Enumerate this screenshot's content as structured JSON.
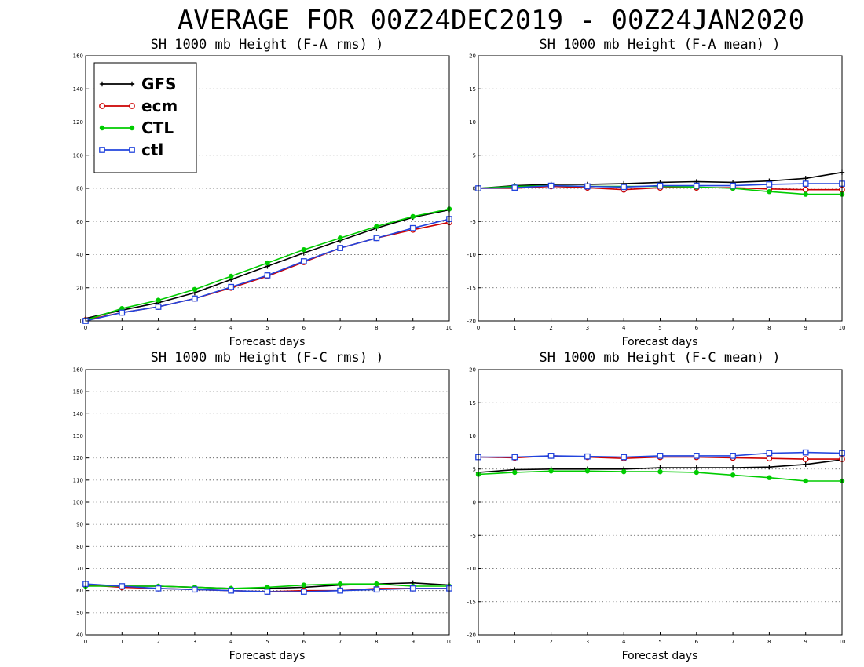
{
  "page_title": "AVERAGE FOR 00Z24DEC2019 - 00Z24JAN2020",
  "legend_entries": [
    "GFS",
    "ecm",
    "CTL",
    "ctl"
  ],
  "series_colors": {
    "GFS": "#000000",
    "ecm": "#cc0000",
    "CTL": "#00cc00",
    "ctl": "#2244dd"
  },
  "series_markers": {
    "GFS": "plus",
    "ecm": "circle",
    "CTL": "filled-circle",
    "ctl": "square"
  },
  "chart_data": [
    {
      "type": "line",
      "title": "SH 1000 mb Height (F-A rms) )",
      "xlabel": "Forecast days",
      "ylabel": "",
      "xlim": [
        0,
        10
      ],
      "ylim": [
        0,
        160
      ],
      "xticks": [
        0,
        1,
        2,
        3,
        4,
        5,
        6,
        7,
        8,
        9,
        10
      ],
      "yticks": [
        0,
        20,
        40,
        60,
        80,
        100,
        120,
        140,
        160
      ],
      "grid": "horizontal-dotted",
      "legend": "top-left",
      "x": [
        0,
        1,
        2,
        3,
        4,
        5,
        6,
        7,
        8,
        9,
        10
      ],
      "series": [
        {
          "name": "GFS",
          "values": [
            1.5,
            6.5,
            11,
            17,
            25,
            33,
            41,
            48.5,
            56,
            62.5,
            67
          ]
        },
        {
          "name": "ecm",
          "values": [
            0.5,
            5,
            8.5,
            13.5,
            20,
            27,
            35.5,
            44,
            50,
            55,
            59.5
          ]
        },
        {
          "name": "CTL",
          "values": [
            0.5,
            7.5,
            12.5,
            19,
            27,
            35,
            43,
            50,
            57,
            63,
            67.5
          ]
        },
        {
          "name": "ctl",
          "values": [
            0,
            5,
            8.5,
            13.5,
            20.5,
            27.5,
            36,
            44,
            50,
            56,
            61.5
          ]
        }
      ]
    },
    {
      "type": "line",
      "title": "SH 1000 mb Height (F-A mean) )",
      "xlabel": "Forecast days",
      "ylabel": "",
      "xlim": [
        0,
        10
      ],
      "ylim": [
        -20,
        20
      ],
      "xticks": [
        0,
        1,
        2,
        3,
        4,
        5,
        6,
        7,
        8,
        9,
        10
      ],
      "yticks": [
        -20,
        -15,
        -10,
        -5,
        0,
        5,
        10,
        15,
        20
      ],
      "grid": "horizontal-dotted",
      "x": [
        0,
        1,
        2,
        3,
        4,
        5,
        6,
        7,
        8,
        9,
        10
      ],
      "series": [
        {
          "name": "GFS",
          "values": [
            0,
            0.4,
            0.6,
            0.6,
            0.7,
            0.9,
            1.0,
            0.9,
            1.1,
            1.5,
            2.4
          ]
        },
        {
          "name": "ecm",
          "values": [
            0,
            0,
            0.3,
            0.1,
            -0.2,
            0.1,
            0.1,
            0.1,
            -0.1,
            -0.2,
            -0.2
          ]
        },
        {
          "name": "CTL",
          "values": [
            0,
            0.3,
            0.4,
            0.3,
            0.3,
            0.3,
            0.2,
            0,
            -0.5,
            -0.9,
            -0.9
          ]
        },
        {
          "name": "ctl",
          "values": [
            0,
            0.1,
            0.4,
            0.3,
            0.2,
            0.4,
            0.4,
            0.4,
            0.6,
            0.7,
            0.7
          ]
        }
      ]
    },
    {
      "type": "line",
      "title": "SH 1000 mb Height (F-C rms) )",
      "xlabel": "Forecast days",
      "ylabel": "",
      "xlim": [
        0,
        10
      ],
      "ylim": [
        40,
        160
      ],
      "xticks": [
        0,
        1,
        2,
        3,
        4,
        5,
        6,
        7,
        8,
        9,
        10
      ],
      "yticks": [
        40,
        50,
        60,
        70,
        80,
        90,
        100,
        110,
        120,
        130,
        140,
        150,
        160
      ],
      "grid": "horizontal-dotted",
      "x": [
        0,
        1,
        2,
        3,
        4,
        5,
        6,
        7,
        8,
        9,
        10
      ],
      "series": [
        {
          "name": "GFS",
          "values": [
            62.5,
            62,
            62,
            61.5,
            61,
            61,
            61.5,
            62.5,
            63,
            63.5,
            62.5
          ]
        },
        {
          "name": "ecm",
          "values": [
            62.5,
            61.5,
            61,
            60.5,
            60,
            59.5,
            60,
            60,
            61,
            61,
            61
          ]
        },
        {
          "name": "CTL",
          "values": [
            62,
            62,
            62,
            61.5,
            61,
            61.5,
            62.5,
            63,
            63,
            62,
            62
          ]
        },
        {
          "name": "ctl",
          "values": [
            63,
            62,
            61,
            60.5,
            60,
            59.5,
            59.5,
            60,
            60.5,
            61,
            61
          ]
        }
      ]
    },
    {
      "type": "line",
      "title": "SH 1000 mb Height (F-C mean) )",
      "xlabel": "Forecast days",
      "ylabel": "",
      "xlim": [
        0,
        10
      ],
      "ylim": [
        -20,
        20
      ],
      "xticks": [
        0,
        1,
        2,
        3,
        4,
        5,
        6,
        7,
        8,
        9,
        10
      ],
      "yticks": [
        -20,
        -15,
        -10,
        -5,
        0,
        5,
        10,
        15,
        20
      ],
      "grid": "horizontal-dotted",
      "x": [
        0,
        1,
        2,
        3,
        4,
        5,
        6,
        7,
        8,
        9,
        10
      ],
      "series": [
        {
          "name": "GFS",
          "values": [
            4.5,
            4.9,
            5.0,
            5.0,
            5.0,
            5.2,
            5.2,
            5.2,
            5.3,
            5.7,
            6.4
          ]
        },
        {
          "name": "ecm",
          "values": [
            6.8,
            6.7,
            7.0,
            6.8,
            6.6,
            6.8,
            6.8,
            6.7,
            6.6,
            6.5,
            6.5
          ]
        },
        {
          "name": "CTL",
          "values": [
            4.2,
            4.5,
            4.7,
            4.7,
            4.6,
            4.6,
            4.5,
            4.1,
            3.7,
            3.2,
            3.2
          ]
        },
        {
          "name": "ctl",
          "values": [
            6.8,
            6.8,
            7.0,
            6.9,
            6.8,
            7.0,
            7.0,
            7.0,
            7.4,
            7.5,
            7.4
          ]
        }
      ]
    }
  ]
}
